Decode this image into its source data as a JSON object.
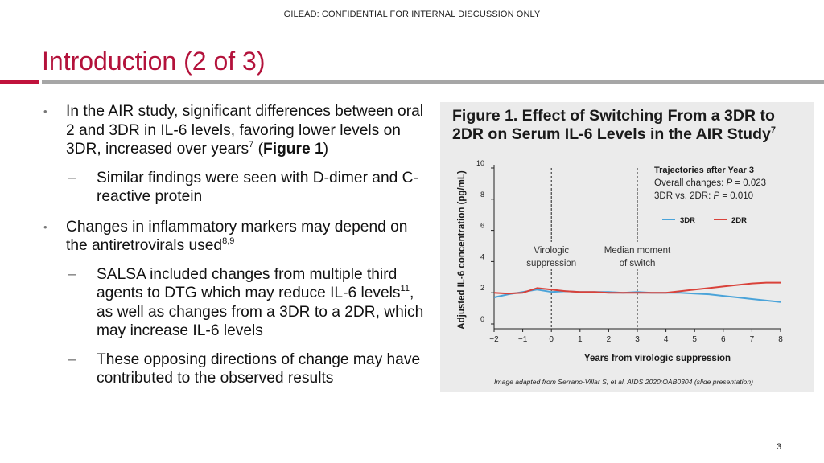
{
  "header": {
    "confidential": "GILEAD:  CONFIDENTIAL FOR INTERNAL DISCUSSION ONLY"
  },
  "slide": {
    "title": "Introduction (2 of 3)",
    "page_number": "3"
  },
  "bullets": {
    "b1": {
      "marker": "•",
      "text_a": "In the AIR study, significant differences between oral 2 and 3DR in IL-6 levels, favoring lower levels on 3DR, increased over years",
      "sup": "7",
      "open_paren": "(",
      "bold": "Figure 1",
      "close_paren": ")"
    },
    "b1_sub": {
      "marker": "–",
      "text": "Similar findings were seen with D-dimer and C-reactive protein"
    },
    "b2": {
      "marker": "•",
      "text": "Changes in inflammatory markers may depend on the antiretrovirals used",
      "sup": "8,9"
    },
    "b2_sub1": {
      "marker": "–",
      "text_a": "SALSA included changes from multiple third agents to DTG which may reduce IL-6 levels",
      "sup": "11",
      "text_b": ", as well as changes from a 3DR to a 2DR, which may increase IL-6 levels"
    },
    "b2_sub2": {
      "marker": "–",
      "text": "These opposing directions of change may have contributed to the observed results"
    }
  },
  "figure": {
    "title": "Figure 1. Effect of Switching From a 3DR to 2DR on Serum IL-6 Levels in the AIR Study",
    "title_sup": "7",
    "source": "Image adapted from Serrano-Villar S, et al. AIDS 2020;OAB0304 (slide presentation)"
  },
  "chart_data": {
    "type": "line",
    "xlabel": "Years from virologic suppression",
    "ylabel": "Adjusted IL-6 concentration (pg/mL)",
    "xlim": [
      -2,
      8
    ],
    "ylim": [
      0,
      10
    ],
    "x_ticks": [
      -2,
      -1,
      0,
      1,
      2,
      3,
      4,
      5,
      6,
      7,
      8
    ],
    "x_tick_labels": [
      "−2",
      "−1",
      "0",
      "1",
      "2",
      "3",
      "4",
      "5",
      "6",
      "7",
      "8"
    ],
    "y_ticks": [
      0,
      2,
      4,
      6,
      8,
      10
    ],
    "y_tick_labels": [
      "0",
      "2",
      "4",
      "6",
      "8",
      "10"
    ],
    "grid": false,
    "series": [
      {
        "name": "3DR",
        "color": "#4aa3d9",
        "x": [
          -2,
          -1.5,
          -1,
          -0.5,
          0,
          0.5,
          1,
          1.5,
          2,
          2.5,
          3,
          3.5,
          4,
          4.5,
          5,
          5.5,
          6,
          6.5,
          7,
          7.5,
          8
        ],
        "y": [
          1.7,
          1.9,
          2.05,
          2.2,
          2.05,
          2.1,
          2.05,
          2.05,
          2.05,
          2.0,
          2.05,
          2.0,
          2.0,
          2.0,
          1.95,
          1.9,
          1.8,
          1.7,
          1.6,
          1.5,
          1.4
        ]
      },
      {
        "name": "2DR",
        "color": "#d9423a",
        "x": [
          -2,
          -1.5,
          -1,
          -0.5,
          0,
          0.5,
          1,
          1.5,
          2,
          2.5,
          3,
          3.5,
          4,
          4.5,
          5,
          5.5,
          6,
          6.5,
          7,
          7.5,
          8
        ],
        "y": [
          2.0,
          1.95,
          2.0,
          2.3,
          2.2,
          2.1,
          2.05,
          2.05,
          2.0,
          2.0,
          2.0,
          2.0,
          2.0,
          2.1,
          2.2,
          2.3,
          2.4,
          2.5,
          2.6,
          2.65,
          2.65
        ]
      }
    ],
    "vlines": [
      {
        "x": 0,
        "label_line1": "Virologic",
        "label_line2": "suppression"
      },
      {
        "x": 3,
        "label_line1": "Median moment",
        "label_line2": "of switch"
      }
    ],
    "annotation": {
      "heading": "Trajectories after Year 3",
      "line1_a": "Overall changes: ",
      "line1_p": "P",
      "line1_b": " = 0.023",
      "line2_a": "3DR vs. 2DR: ",
      "line2_p": "P",
      "line2_b": " = 0.010"
    },
    "legend_position": "top-right"
  }
}
